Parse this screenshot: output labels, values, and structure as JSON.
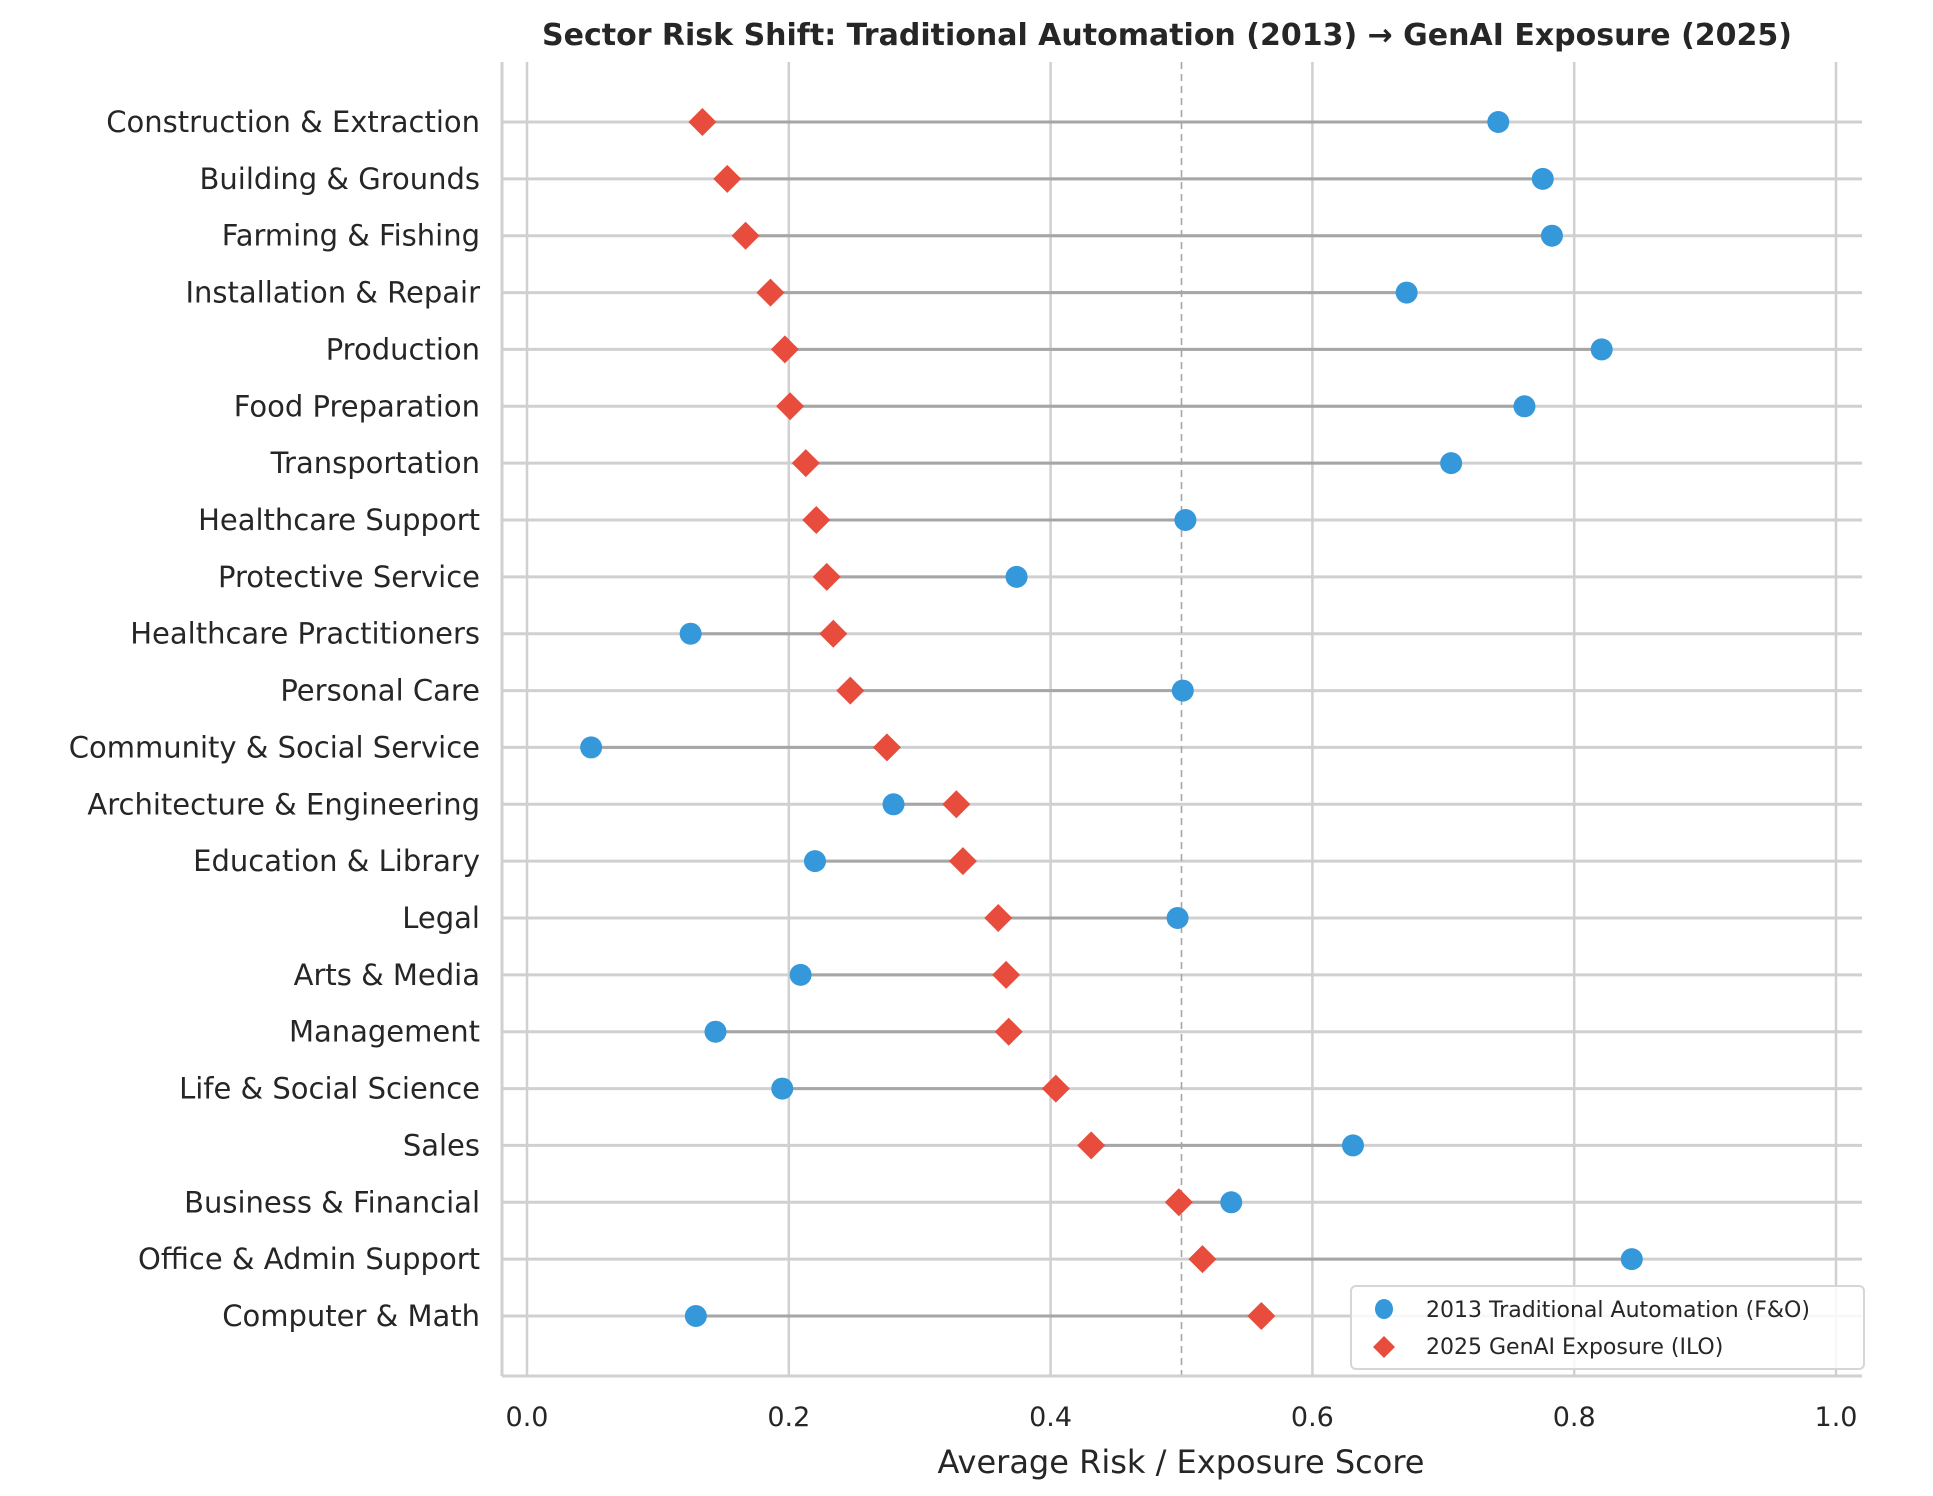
{
  "chart_data": {
    "type": "dumbbell",
    "title": "Sector Risk Shift: Traditional Automation (2013) → GenAI Exposure (2025)",
    "xlabel": "Average Risk / Exposure Score",
    "ylabel": "",
    "xlim": [
      -0.02,
      1.02
    ],
    "xticks": [
      "0.0",
      "0.2",
      "0.4",
      "0.6",
      "0.8",
      "1.0"
    ],
    "xtick_values": [
      0.0,
      0.2,
      0.4,
      0.6,
      0.8,
      1.0
    ],
    "reference_line": 0.5,
    "grid": true,
    "legend_position": "lower-right",
    "categories": [
      "Construction & Extraction",
      "Building & Grounds",
      "Farming & Fishing",
      "Installation & Repair",
      "Production",
      "Food Preparation",
      "Transportation",
      "Healthcare Support",
      "Protective Service",
      "Healthcare Practitioners",
      "Personal Care",
      "Community & Social Service",
      "Architecture & Engineering",
      "Education & Library",
      "Legal",
      "Arts & Media",
      "Management",
      "Life & Social Science",
      "Sales",
      "Business & Financial",
      "Office & Admin Support",
      "Computer & Math"
    ],
    "series": [
      {
        "name": "2013 Traditional Automation (F&O)",
        "marker": "circle",
        "color": "#3498db",
        "values": [
          0.742,
          0.776,
          0.783,
          0.672,
          0.821,
          0.762,
          0.706,
          0.503,
          0.374,
          0.125,
          0.501,
          0.049,
          0.28,
          0.22,
          0.497,
          0.209,
          0.144,
          0.195,
          0.631,
          0.538,
          0.844,
          0.129
        ]
      },
      {
        "name": "2025 GenAI Exposure (ILO)",
        "marker": "diamond",
        "color": "#e74c3c",
        "values": [
          0.134,
          0.153,
          0.167,
          0.186,
          0.197,
          0.201,
          0.213,
          0.221,
          0.229,
          0.234,
          0.247,
          0.275,
          0.328,
          0.333,
          0.36,
          0.366,
          0.368,
          0.404,
          0.431,
          0.498,
          0.516,
          0.561
        ]
      }
    ],
    "colors": {
      "connector": "#a6a6a6",
      "grid": "#d0d0d0",
      "reference": "#a6a6a6",
      "text": "#262626"
    }
  }
}
